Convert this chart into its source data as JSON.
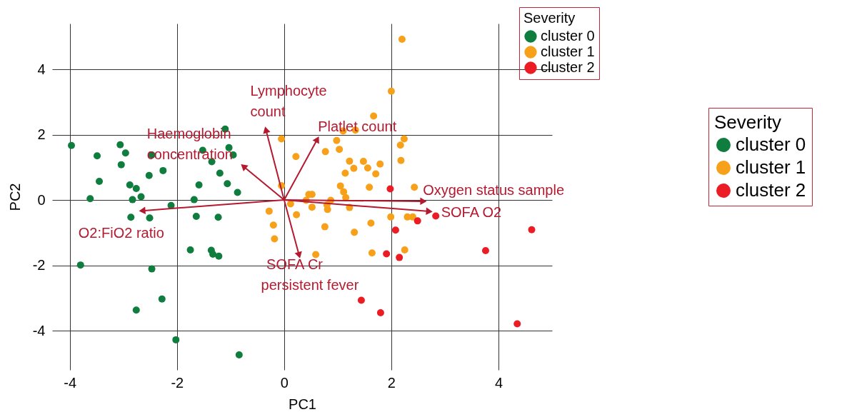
{
  "chart_data": {
    "type": "scatter",
    "xlabel": "PC1",
    "ylabel": "PC2",
    "legend_title": "Severity",
    "legend": "right",
    "grid": true,
    "marker": "circle",
    "xlim": [
      -4.33,
      5.0
    ],
    "ylim": [
      -5.2,
      5.4
    ],
    "xticks": [
      -4,
      -2,
      0,
      2,
      4
    ],
    "yticks": [
      -4,
      -2,
      0,
      2,
      4
    ],
    "series": [
      {
        "name": "cluster 0",
        "color": "#0e7d3e",
        "x": [
          -3.97,
          -3.49,
          -3.06,
          -2.96,
          -3.04,
          -3.45,
          -2.47,
          -2.52,
          -2.26,
          -2.88,
          -2.76,
          -2.67,
          -2.83,
          -3.62,
          -2.86,
          -2.51,
          -2.11,
          -1.68,
          -1.59,
          -1.64,
          -1.23,
          -1.52,
          -1.1,
          -1.03,
          -0.95,
          -1.35,
          -1.2,
          -1.06,
          -0.87,
          -1.75,
          -1.36,
          -1.33,
          -1.22,
          -3.8,
          -2.47,
          -2.28,
          -2.76,
          -2.02,
          -0.84
        ],
        "values": [
          1.67,
          1.35,
          1.69,
          1.44,
          1.08,
          0.57,
          1.38,
          0.75,
          0.9,
          0.46,
          0.35,
          0.1,
          0.01,
          0.04,
          -0.53,
          -0.55,
          -0.17,
          0.01,
          0.46,
          -0.5,
          -0.53,
          1.52,
          2.17,
          1.6,
          1.38,
          1.17,
          0.82,
          0.5,
          0.23,
          -1.53,
          -1.54,
          -1.66,
          -1.72,
          -1.99,
          -2.11,
          -3.03,
          -3.37,
          -4.28,
          -4.74
        ]
      },
      {
        "name": "cluster 1",
        "color": "#f7a11a",
        "x": [
          2.2,
          2.0,
          1.67,
          1.1,
          1.33,
          2.24,
          2.17,
          2.18,
          -0.05,
          0.98,
          1.03,
          0.77,
          0.22,
          1.22,
          1.48,
          1.79,
          1.3,
          1.56,
          1.14,
          1.71,
          1.59,
          2.43,
          -0.05,
          1.05,
          1.11,
          1.15,
          0.46,
          0.52,
          0.87,
          0.41,
          0.12,
          0.52,
          0.8,
          0.81,
          1.22,
          -0.28,
          0.23,
          1.99,
          2.3,
          2.4,
          1.62,
          -0.2,
          0.76,
          -0.18,
          1.31,
          1.64,
          0.59,
          2.25
        ],
        "values": [
          4.92,
          3.33,
          2.57,
          2.11,
          2.14,
          1.87,
          1.68,
          1.21,
          1.87,
          1.82,
          1.55,
          1.48,
          1.33,
          1.19,
          1.18,
          1.1,
          0.97,
          0.98,
          0.82,
          0.8,
          0.39,
          0.39,
          0.44,
          0.43,
          0.25,
          0.07,
          0.17,
          0.17,
          -0.01,
          -0.01,
          -0.12,
          -0.22,
          -0.15,
          -0.29,
          -0.23,
          -0.34,
          -0.45,
          -0.52,
          -0.52,
          -0.52,
          -0.71,
          -0.77,
          -0.82,
          -1.19,
          -0.99,
          -1.62,
          -1.67,
          -1.53
        ]
      },
      {
        "name": "cluster 2",
        "color": "#ec1c24",
        "x": [
          1.98,
          2.83,
          2.49,
          2.08,
          4.62,
          3.76,
          1.91,
          2.15,
          1.44,
          1.8,
          4.35
        ],
        "values": [
          0.34,
          -0.49,
          -0.64,
          -0.92,
          -0.91,
          -1.55,
          -1.65,
          -1.76,
          -3.07,
          -3.45,
          -3.79
        ]
      },
      {
        "type": "line",
        "marker": "triangle",
        "color": "#b5192f",
        "x": [
          0,
          -0.34
        ],
        "values": [
          0,
          2.15
        ]
      },
      {
        "type": "line",
        "marker": "triangle",
        "color": "#b5192f",
        "x": [
          0,
          0.62
        ],
        "values": [
          0,
          1.86
        ]
      },
      {
        "type": "line",
        "marker": "triangle",
        "color": "#b5192f",
        "x": [
          0,
          -0.76
        ],
        "values": [
          0,
          1.03
        ]
      },
      {
        "type": "line",
        "marker": "triangle",
        "color": "#b5192f",
        "x": [
          0,
          -2.65
        ],
        "values": [
          0,
          -0.33
        ]
      },
      {
        "type": "line",
        "marker": "triangle",
        "color": "#b5192f",
        "x": [
          0,
          2.6
        ],
        "values": [
          0,
          -0.04
        ]
      },
      {
        "type": "line",
        "marker": "triangle",
        "color": "#b5192f",
        "x": [
          0,
          2.71
        ],
        "values": [
          0,
          -0.35
        ]
      },
      {
        "type": "line",
        "marker": "triangle",
        "color": "#b5192f",
        "x": [
          0,
          0.28
        ],
        "values": [
          0,
          -1.69
        ]
      }
    ],
    "annotations": [
      "Lymphocyte\ncount",
      "Platlet count",
      "Haemoglobin\nconcentration",
      "O2:FiO2 ratio",
      "Oxygen status sample",
      "SOFA O2",
      "SOFA Cr",
      "persistent fever"
    ]
  }
}
